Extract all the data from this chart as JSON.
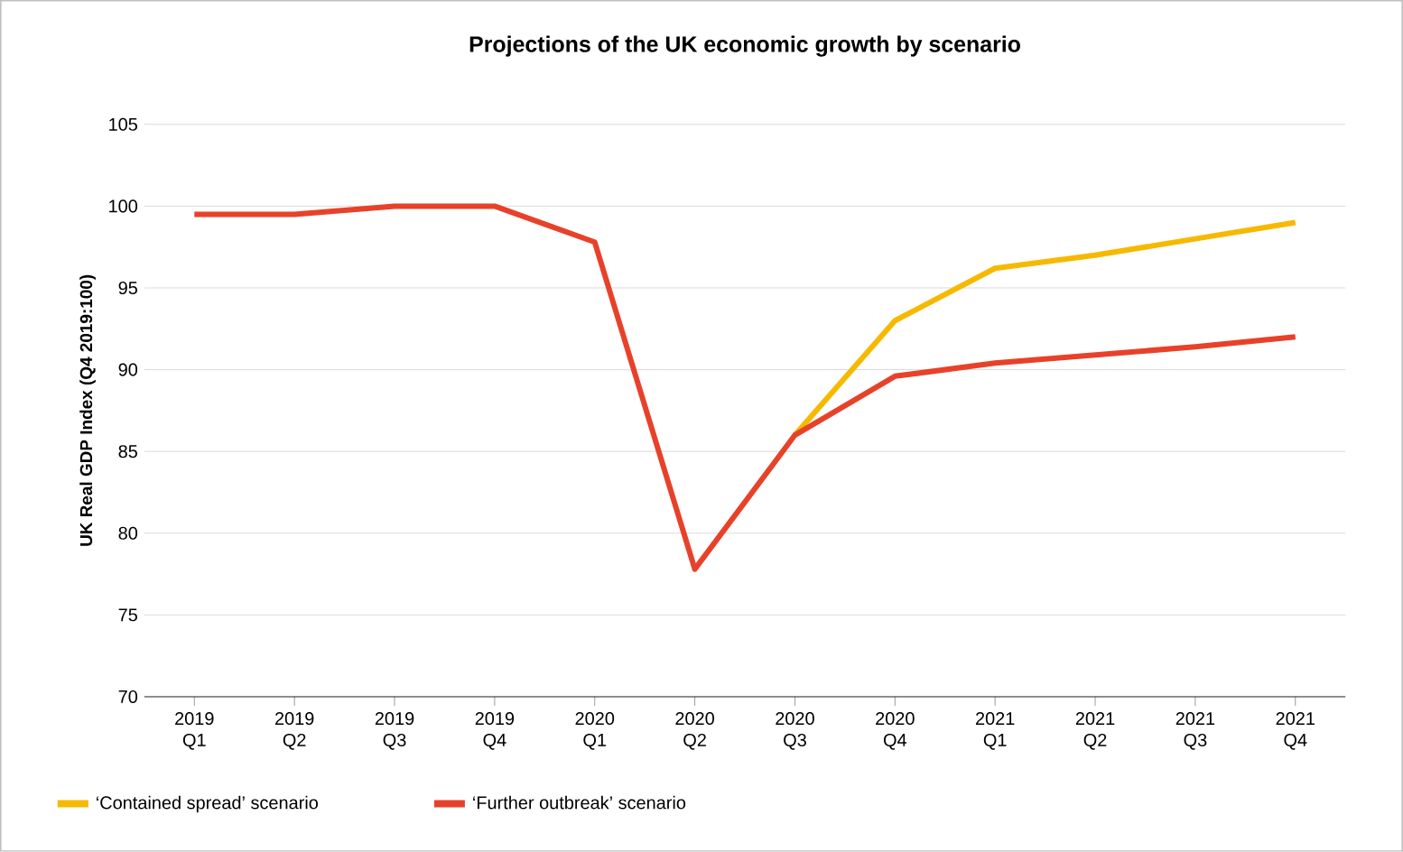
{
  "chart_data": {
    "type": "line",
    "title": "Projections of the UK economic growth by scenario",
    "ylabel": "UK Real GDP Index (Q4 2019:100)",
    "categories": [
      "2019 Q1",
      "2019 Q2",
      "2019 Q3",
      "2019 Q4",
      "2020 Q1",
      "2020 Q2",
      "2020 Q3",
      "2020 Q4",
      "2021 Q1",
      "2021 Q2",
      "2021 Q3",
      "2021 Q4"
    ],
    "series": [
      {
        "name": "‘Contained spread’ scenario",
        "color": "#f6b900",
        "values": [
          null,
          null,
          null,
          null,
          null,
          null,
          86,
          93,
          96.2,
          97,
          98,
          99
        ]
      },
      {
        "name": "‘Further outbreak’ scenario",
        "color": "#e8412a",
        "values": [
          99.5,
          99.5,
          100,
          100,
          97.8,
          77.8,
          86,
          89.6,
          90.4,
          90.9,
          91.4,
          92
        ]
      }
    ],
    "ylim": [
      70,
      105
    ],
    "yticks": [
      70,
      75,
      80,
      85,
      90,
      95,
      100,
      105
    ],
    "grid": "y",
    "legend": "bottom",
    "marker": "none",
    "line_style": "solid"
  }
}
